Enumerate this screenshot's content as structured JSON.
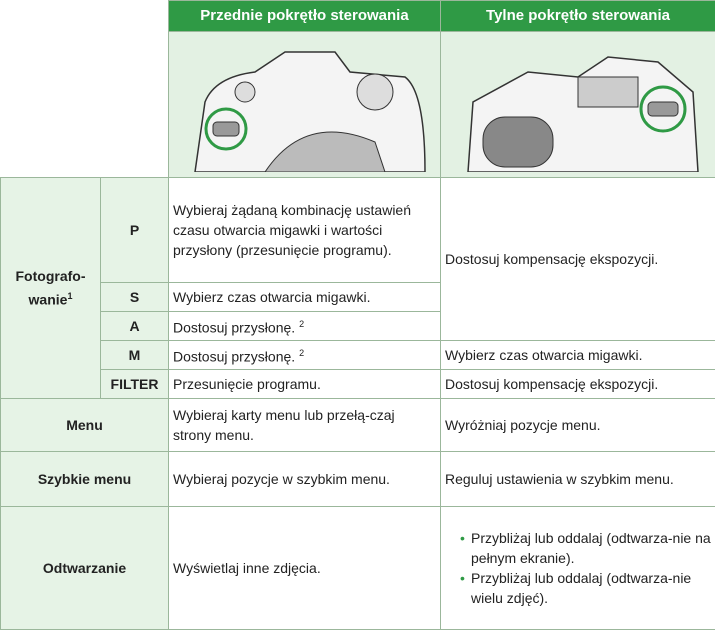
{
  "header": {
    "columns": [
      "Przednie pokrętło sterowania",
      "Tylne pokrętło sterowania"
    ]
  },
  "table": {
    "photography": {
      "label": "Fotografo-wanie",
      "note": "1",
      "modes": [
        {
          "mode": "P",
          "front": "Wybieraj żądaną kombinację ustawień czasu otwarcia migawki i wartości przysłony (przesunięcie programu)."
        },
        {
          "mode": "S",
          "front": "Wybierz czas otwarcia migawki."
        },
        {
          "mode": "A",
          "front": "Dostosuj przysłonę.",
          "front_note": "2"
        },
        {
          "mode": "M",
          "front": "Dostosuj przysłonę.",
          "front_note": "2",
          "rear": "Wybierz czas otwarcia migawki."
        },
        {
          "mode": "FILTER",
          "front": "Przesunięcie programu.",
          "rear": "Dostosuj kompensację ekspozycji."
        }
      ],
      "rear_psa": "Dostosuj kompensację ekspozycji."
    },
    "rows": [
      {
        "label": "Menu",
        "front": "Wybieraj karty menu lub przełą-czaj strony menu.",
        "rear": "Wyróżniaj pozycje menu."
      },
      {
        "label": "Szybkie menu",
        "front": "Wybieraj pozycje w szybkim menu.",
        "rear": "Reguluj ustawienia w szybkim menu."
      },
      {
        "label": "Odtwarzanie",
        "front": "Wyświetlaj inne zdjęcia.",
        "rear": [
          "Przybliżaj lub oddalaj (odtwarza-nie na pełnym ekranie).",
          "Przybliżaj lub oddalaj (odtwarza-nie wielu zdjęć)."
        ]
      }
    ]
  }
}
